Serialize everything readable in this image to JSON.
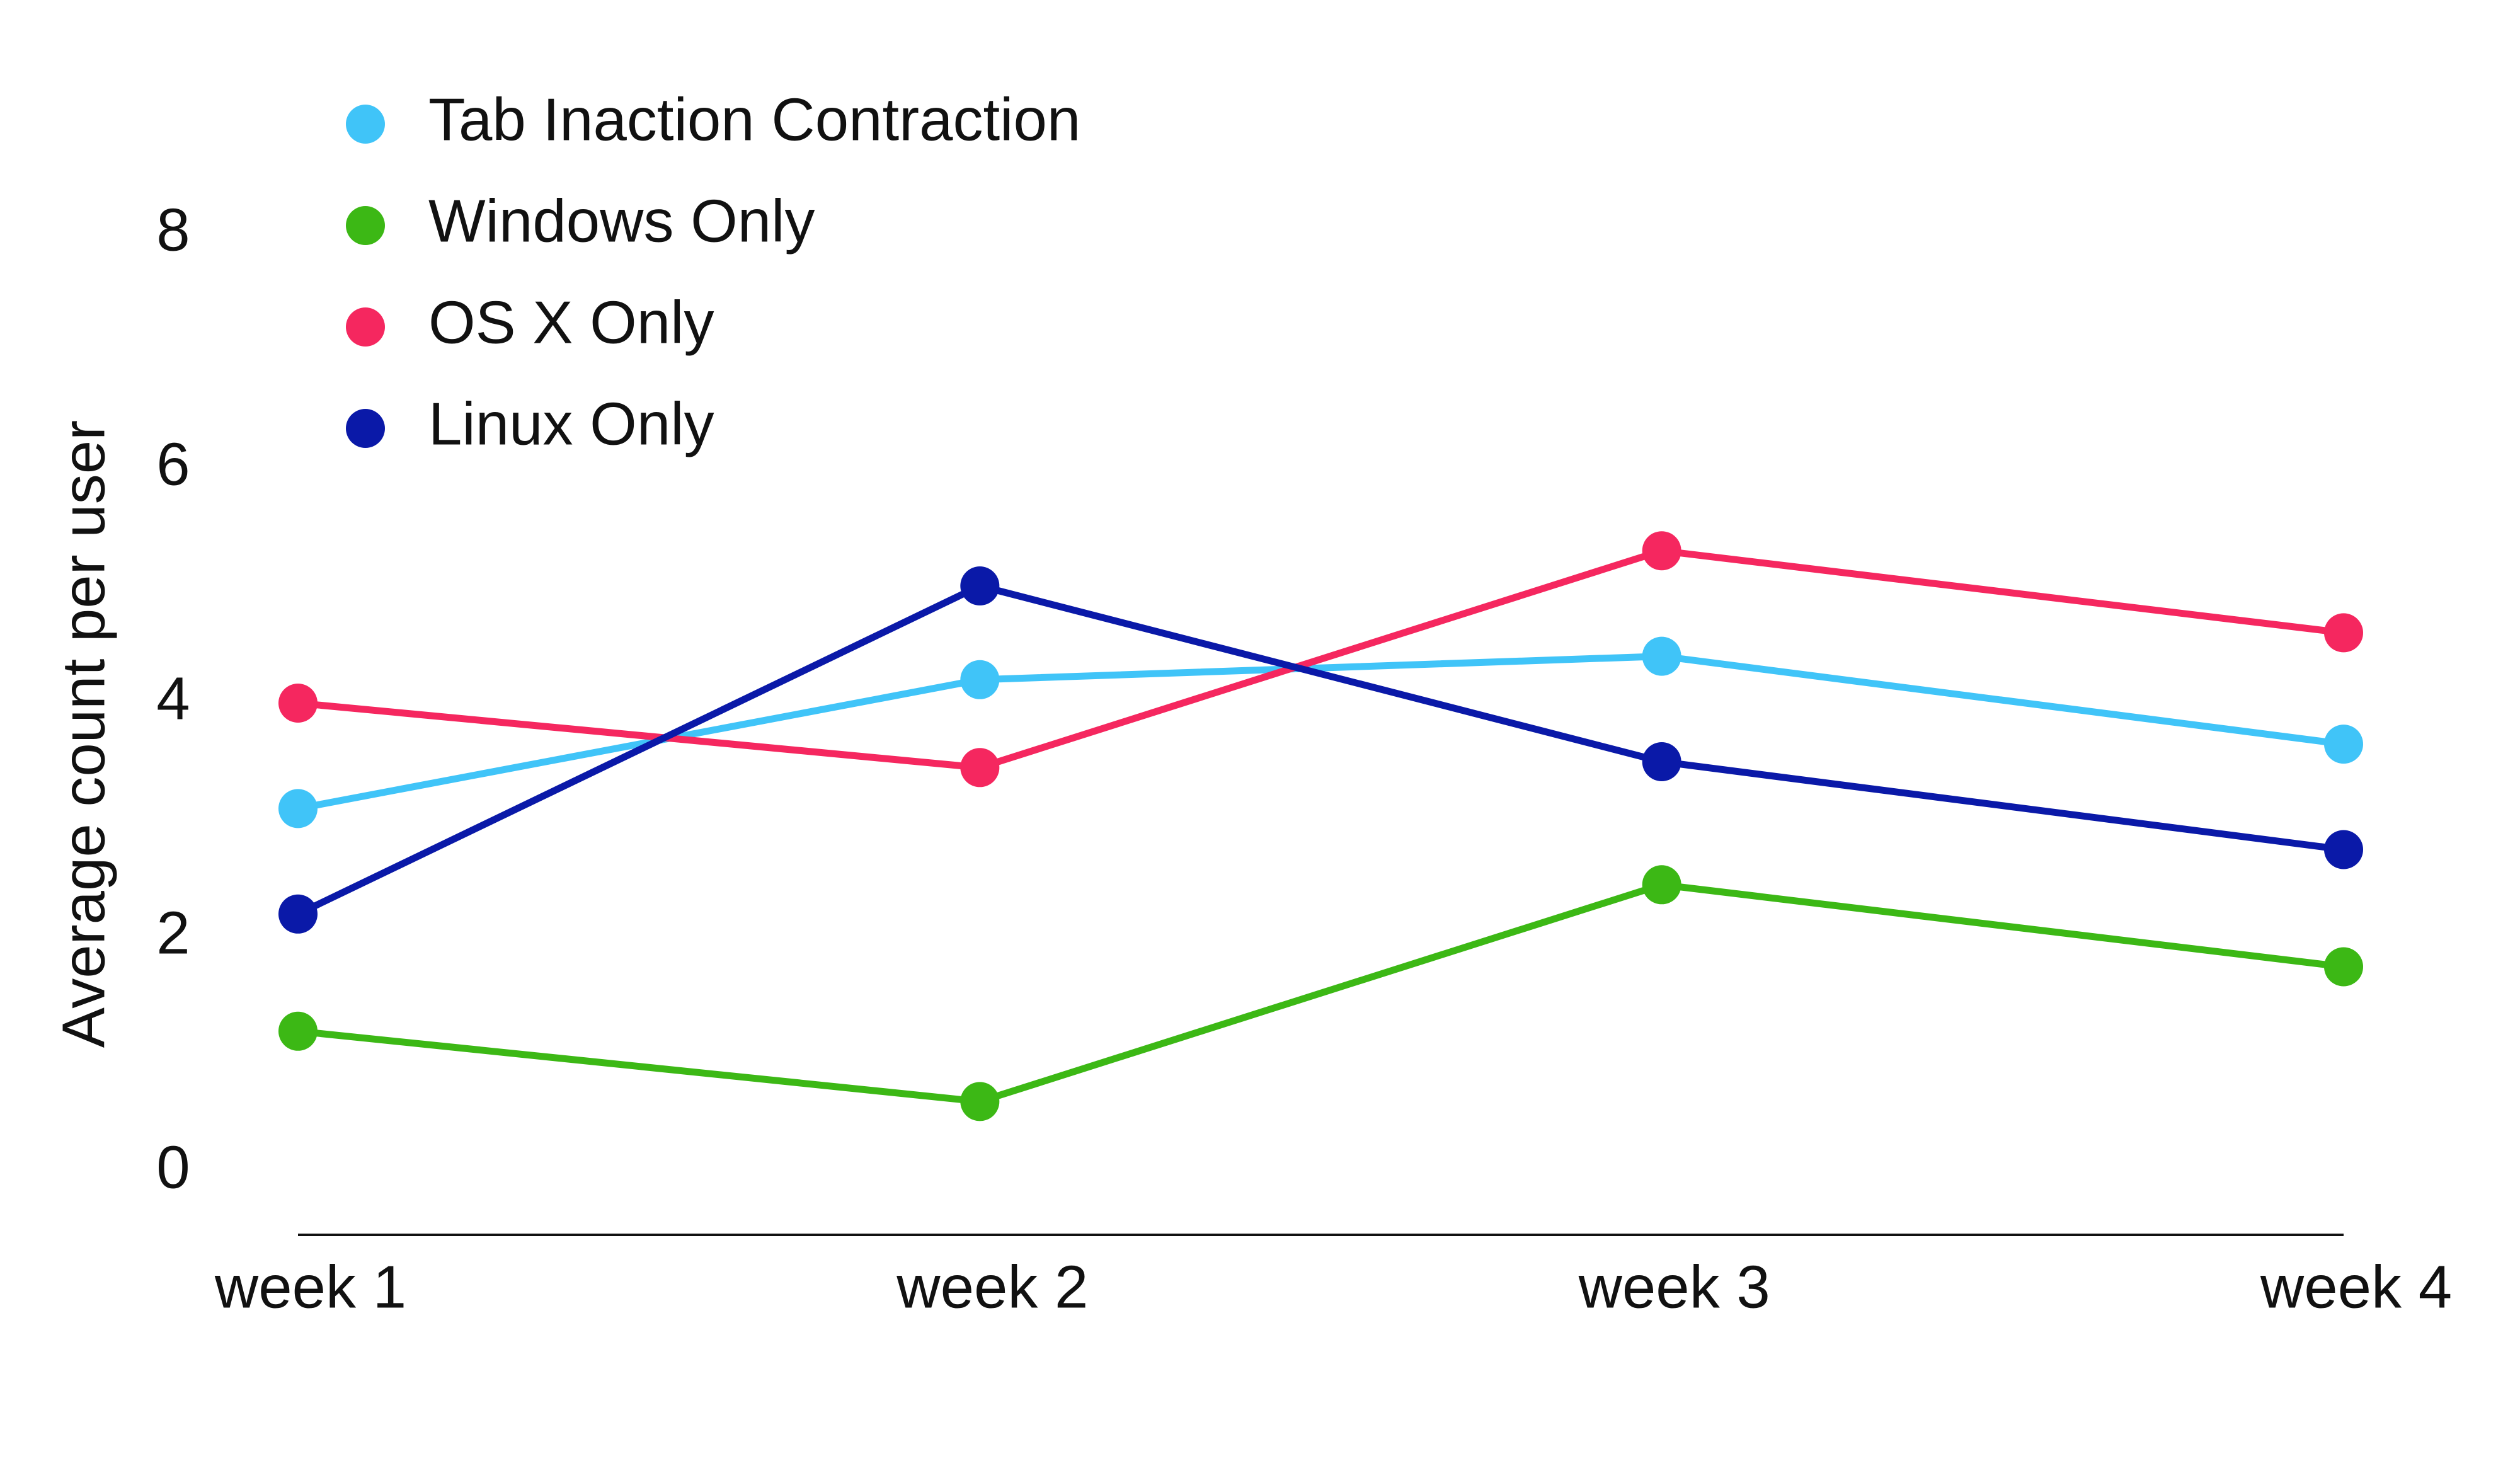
{
  "chart_data": {
    "type": "line",
    "title": "",
    "xlabel": "",
    "ylabel": "Average count per user",
    "categories": [
      "week 1",
      "week 2",
      "week 3",
      "week 4"
    ],
    "y_ticks": [
      0,
      2,
      4,
      6,
      8
    ],
    "ylim": [
      0,
      8
    ],
    "grid": false,
    "legend_position": "top-left",
    "series": [
      {
        "name": "Tab Inaction Contraction",
        "color": "#40c4f8",
        "values": [
          3.1,
          4.2,
          4.4,
          3.65
        ]
      },
      {
        "name": "Windows Only",
        "color": "#3cb815",
        "values": [
          1.2,
          0.6,
          2.45,
          1.75
        ]
      },
      {
        "name": "OS X Only",
        "color": "#f5275f",
        "values": [
          4.0,
          3.45,
          5.3,
          4.6
        ]
      },
      {
        "name": "Linux Only",
        "color": "#0a19a8",
        "values": [
          2.2,
          5.0,
          3.5,
          2.75
        ]
      }
    ]
  }
}
